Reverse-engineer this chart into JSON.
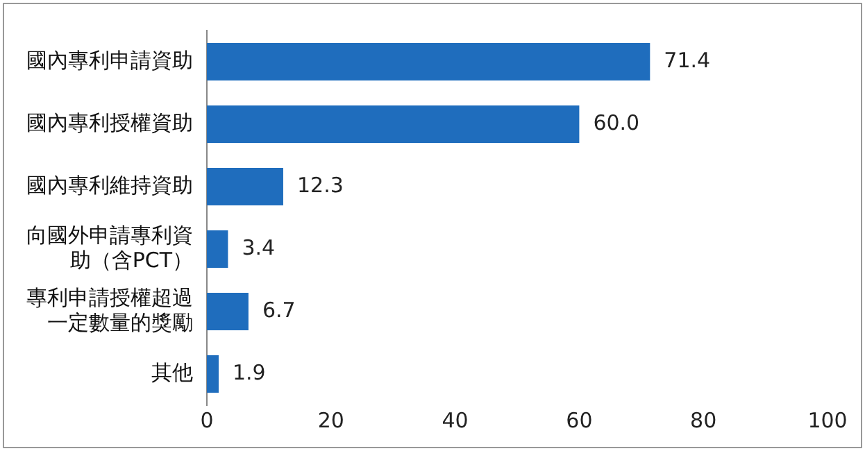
{
  "chart_data": {
    "type": "bar",
    "orientation": "horizontal",
    "categories": [
      "國內專利申請資助",
      "國內專利授權資助",
      "國內專利維持資助",
      "向國外申請專利資助（含PCT）",
      "專利申請授權超過一定數量的獎勵",
      "其他"
    ],
    "values": [
      71.4,
      60.0,
      12.3,
      3.4,
      6.7,
      1.9
    ],
    "value_labels": [
      "71.4",
      "60.0",
      "12.3",
      "3.4",
      "6.7",
      "1.9"
    ],
    "color": "#1f6dbd",
    "xlim": [
      0,
      100
    ],
    "xticks": [
      0,
      20,
      40,
      60,
      80,
      100
    ],
    "grid": false,
    "legend": false
  }
}
